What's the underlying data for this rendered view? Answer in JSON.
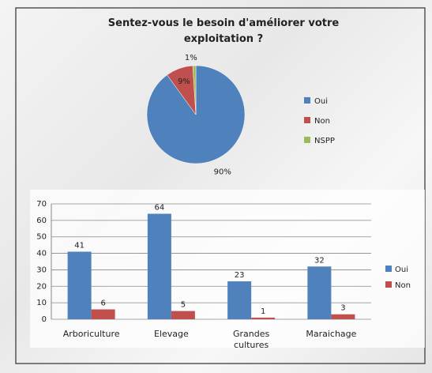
{
  "chart_data": [
    {
      "type": "pie",
      "title": "Sentez-vous le besoin d'améliorer votre exploitation ?",
      "categories": [
        "Oui",
        "Non",
        "NSPP"
      ],
      "values": [
        90,
        9,
        1
      ],
      "value_labels": [
        "90%",
        "9%",
        "1%"
      ],
      "colors": [
        "#4f81bd",
        "#c0504d",
        "#9bbb59"
      ],
      "legend": "right"
    },
    {
      "type": "bar",
      "categories": [
        "Arboriculture",
        "Elevage",
        "Grandes cultures",
        "Maraichage"
      ],
      "series": [
        {
          "name": "Oui",
          "color": "#4f81bd",
          "values": [
            41,
            64,
            23,
            32
          ]
        },
        {
          "name": "Non",
          "color": "#c0504d",
          "values": [
            6,
            5,
            1,
            3
          ]
        }
      ],
      "ylim": [
        0,
        70
      ],
      "yticks": [
        0,
        10,
        20,
        30,
        40,
        50,
        60,
        70
      ],
      "grid": true,
      "legend": "right"
    }
  ]
}
